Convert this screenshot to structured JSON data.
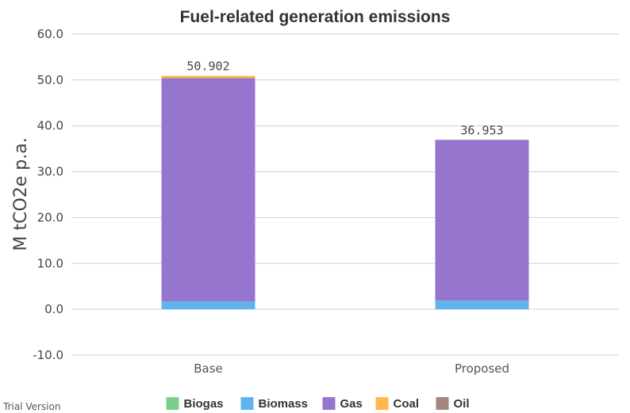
{
  "chart_data": {
    "type": "bar",
    "stacked": true,
    "title": "Fuel-related generation emissions",
    "ylabel": "M tCO2e p.a.",
    "xlabel": "",
    "ylim": [
      -10,
      60
    ],
    "yticks": [
      "-10.0",
      "0.0",
      "10.0",
      "20.0",
      "30.0",
      "40.0",
      "50.0",
      "60.0"
    ],
    "ytick_values": [
      -10,
      0,
      10,
      20,
      30,
      40,
      50,
      60
    ],
    "grid": true,
    "legend_position": "bottom",
    "categories": [
      "Base",
      "Proposed"
    ],
    "series": [
      {
        "name": "Biogas",
        "color": "#7ccf8a",
        "values": [
          0.0,
          0.0
        ]
      },
      {
        "name": "Biomass",
        "color": "#5fb4f0",
        "values": [
          1.7,
          1.9
        ]
      },
      {
        "name": "Gas",
        "color": "#9575cd",
        "values": [
          48.7,
          35.05
        ]
      },
      {
        "name": "Coal",
        "color": "#ffb74d",
        "values": [
          0.5,
          0.0
        ]
      },
      {
        "name": "Oil",
        "color": "#a1887f",
        "values": [
          0.0,
          0.0
        ]
      }
    ],
    "totals": [
      "50.902",
      "36.953"
    ],
    "total_values": [
      50.902,
      36.953
    ]
  },
  "watermark": "Trial Version"
}
